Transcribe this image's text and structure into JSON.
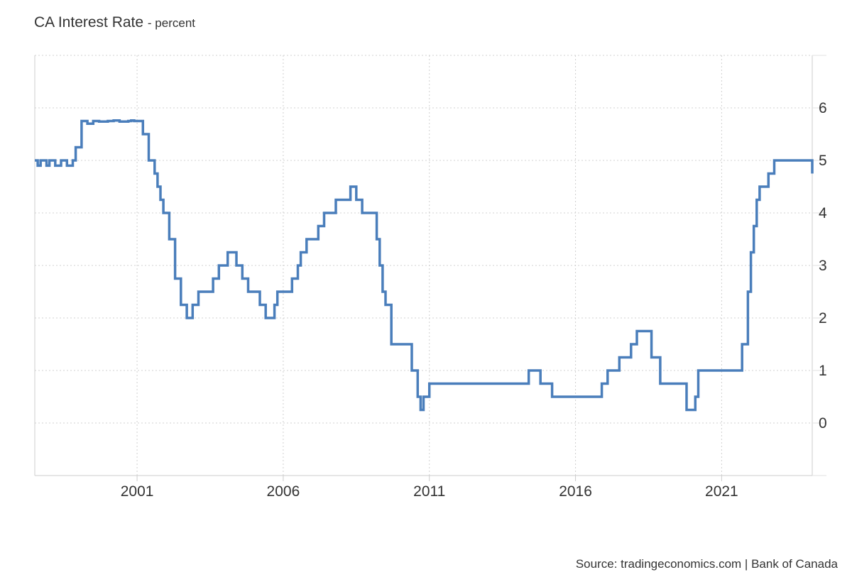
{
  "header": {
    "title": "CA Interest Rate",
    "subtitle": "- percent"
  },
  "source": "Source: tradingeconomics.com | Bank of Canada",
  "chart_data": {
    "type": "line",
    "step": true,
    "title": "CA Interest Rate",
    "subtitle": "- percent",
    "xlabel": "",
    "ylabel": "",
    "xlim": [
      1997.5,
      2024.1
    ],
    "ylim": [
      -1,
      7
    ],
    "x_ticks": [
      2001,
      2006,
      2011,
      2016,
      2021
    ],
    "x_tick_labels": [
      "2001",
      "2006",
      "2011",
      "2016",
      "2021"
    ],
    "y_ticks": [
      0,
      1,
      2,
      3,
      4,
      5,
      6
    ],
    "y_tick_labels": [
      "0",
      "1",
      "2",
      "3",
      "4",
      "5",
      "6"
    ],
    "y_axis_side": "right",
    "grid": true,
    "line_color": "#4a7ebb",
    "series": [
      {
        "x": [
          1997.5,
          1997.6,
          1997.7,
          1997.9,
          1998.0,
          1998.2,
          1998.4,
          1998.6,
          1998.8,
          1998.9,
          1999.1,
          1999.3,
          1999.5,
          1999.7,
          2000.0,
          2000.2,
          2000.4,
          2000.7,
          2000.8,
          2000.9,
          2001.0,
          2001.2,
          2001.3,
          2001.4,
          2001.6,
          2001.7,
          2001.8,
          2001.9,
          2002.1,
          2002.3,
          2002.5,
          2002.7,
          2002.9,
          2003.1,
          2003.6,
          2003.8,
          2004.1,
          2004.4,
          2004.6,
          2004.8,
          2005.2,
          2005.4,
          2005.7,
          2005.8,
          2006.1,
          2006.3,
          2006.5,
          2006.6,
          2006.8,
          2007.2,
          2007.4,
          2007.8,
          2008.1,
          2008.3,
          2008.5,
          2008.7,
          2009.2,
          2009.3,
          2009.4,
          2009.5,
          2009.7,
          2010.4,
          2010.6,
          2010.7,
          2010.8,
          2011.0,
          2014.4,
          2014.8,
          2015.2,
          2016.7,
          2016.9,
          2017.1,
          2017.5,
          2017.9,
          2018.1,
          2018.3,
          2018.6,
          2018.9,
          2019.8,
          2019.9,
          2020.1,
          2020.2,
          2021.7,
          2021.9,
          2022.0,
          2022.1,
          2022.2,
          2022.3,
          2022.5,
          2022.6,
          2022.8,
          2022.9,
          2023.2,
          2023.4,
          2023.5,
          2023.7,
          2024.0,
          2024.1
        ],
        "y": [
          5.0,
          4.9,
          5.0,
          4.9,
          5.0,
          4.9,
          5.0,
          4.9,
          5.0,
          5.25,
          5.75,
          5.7,
          5.75,
          5.74,
          5.75,
          5.76,
          5.74,
          5.75,
          5.76,
          5.75,
          5.75,
          5.5,
          5.5,
          5.0,
          4.75,
          4.5,
          4.25,
          4.0,
          3.5,
          2.75,
          2.25,
          2.0,
          2.25,
          2.5,
          2.75,
          3.0,
          3.25,
          3.0,
          2.75,
          2.5,
          2.25,
          2.0,
          2.25,
          2.5,
          2.5,
          2.75,
          3.0,
          3.25,
          3.5,
          3.75,
          4.0,
          4.25,
          4.25,
          4.5,
          4.25,
          4.0,
          3.5,
          3.0,
          2.5,
          2.25,
          1.5,
          1.0,
          0.5,
          0.25,
          0.5,
          0.75,
          1.0,
          0.75,
          0.5,
          0.5,
          0.75,
          1.0,
          1.25,
          1.5,
          1.75,
          1.75,
          1.25,
          0.75,
          0.25,
          0.25,
          0.5,
          1.0,
          1.5,
          2.5,
          3.25,
          3.75,
          4.25,
          4.5,
          4.5,
          4.75,
          5.0,
          5.0,
          5.0,
          5.0,
          5.0,
          5.0,
          5.0,
          4.75
        ]
      }
    ]
  }
}
